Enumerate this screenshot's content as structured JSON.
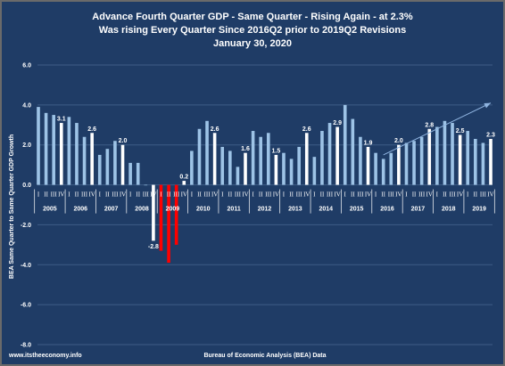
{
  "colors": {
    "background": "#1f3c66",
    "bar_default": "#9dc3e6",
    "bar_q4": "#ffffff",
    "bar_recession": "#ff0000",
    "trend_arrow": "#8fb4e0",
    "grid": "#3f5c86"
  },
  "footer": {
    "site": "www.itstheeconomy.info",
    "source": "Bureau of Economic Analysis (BEA) Data"
  },
  "chart_data": {
    "type": "bar",
    "title": [
      "Advance Fourth Quarter GDP - Same Quarter - Rising Again - at 2.3%",
      "Was rising Every Quarter Since 2016Q2 prior to 2019Q2 Revisions",
      "January 30, 2020"
    ],
    "ylabel": "BEA Same Quarter to Same Quarter GDP Growth",
    "ylim": [
      -8.0,
      6.0
    ],
    "yticks": [
      "6.0",
      "4.0",
      "2.0",
      "0.0",
      "-2.0",
      "-4.0",
      "-6.0",
      "-8.0"
    ],
    "ytick_values": [
      6,
      4,
      2,
      0,
      -2,
      -4,
      -6,
      -8
    ],
    "grid": true,
    "years": [
      "2005",
      "2006",
      "2007",
      "2008",
      "2009",
      "2010",
      "2011",
      "2012",
      "2013",
      "2014",
      "2015",
      "2016",
      "2017",
      "2018",
      "2019"
    ],
    "quarter_labels": [
      "I",
      "II",
      "III",
      "IV"
    ],
    "values": [
      3.9,
      3.6,
      3.5,
      3.1,
      3.4,
      3.1,
      2.4,
      2.6,
      1.5,
      1.8,
      2.2,
      2.0,
      1.1,
      1.1,
      0.0,
      -2.8,
      -3.3,
      -3.9,
      -3.0,
      0.2,
      1.7,
      2.8,
      3.2,
      2.6,
      1.9,
      1.7,
      0.9,
      1.6,
      2.7,
      2.4,
      2.6,
      1.5,
      1.6,
      1.3,
      1.9,
      2.6,
      1.4,
      2.7,
      3.1,
      2.9,
      4.0,
      3.3,
      2.4,
      1.9,
      1.6,
      1.3,
      1.6,
      2.0,
      2.1,
      2.2,
      2.4,
      2.8,
      2.9,
      3.2,
      3.1,
      2.5,
      2.7,
      2.3,
      2.1,
      2.3
    ],
    "recession_indices": [
      16,
      17,
      18
    ],
    "data_labels": [
      {
        "index": 3,
        "text": "3.1"
      },
      {
        "index": 7,
        "text": "2.6"
      },
      {
        "index": 11,
        "text": "2.0"
      },
      {
        "index": 15,
        "text": "-2.8"
      },
      {
        "index": 19,
        "text": "0.2"
      },
      {
        "index": 23,
        "text": "2.6"
      },
      {
        "index": 27,
        "text": "1.6"
      },
      {
        "index": 31,
        "text": "1.5"
      },
      {
        "index": 35,
        "text": "2.6"
      },
      {
        "index": 39,
        "text": "2.9"
      },
      {
        "index": 43,
        "text": "1.9"
      },
      {
        "index": 47,
        "text": "2.0"
      },
      {
        "index": 51,
        "text": "2.8"
      },
      {
        "index": 55,
        "text": "2.5"
      },
      {
        "index": 59,
        "text": "2.3"
      }
    ],
    "trend_line": {
      "from_index": 45,
      "from_value": 1.5,
      "to_index": 59,
      "to_value": 4.1
    }
  }
}
